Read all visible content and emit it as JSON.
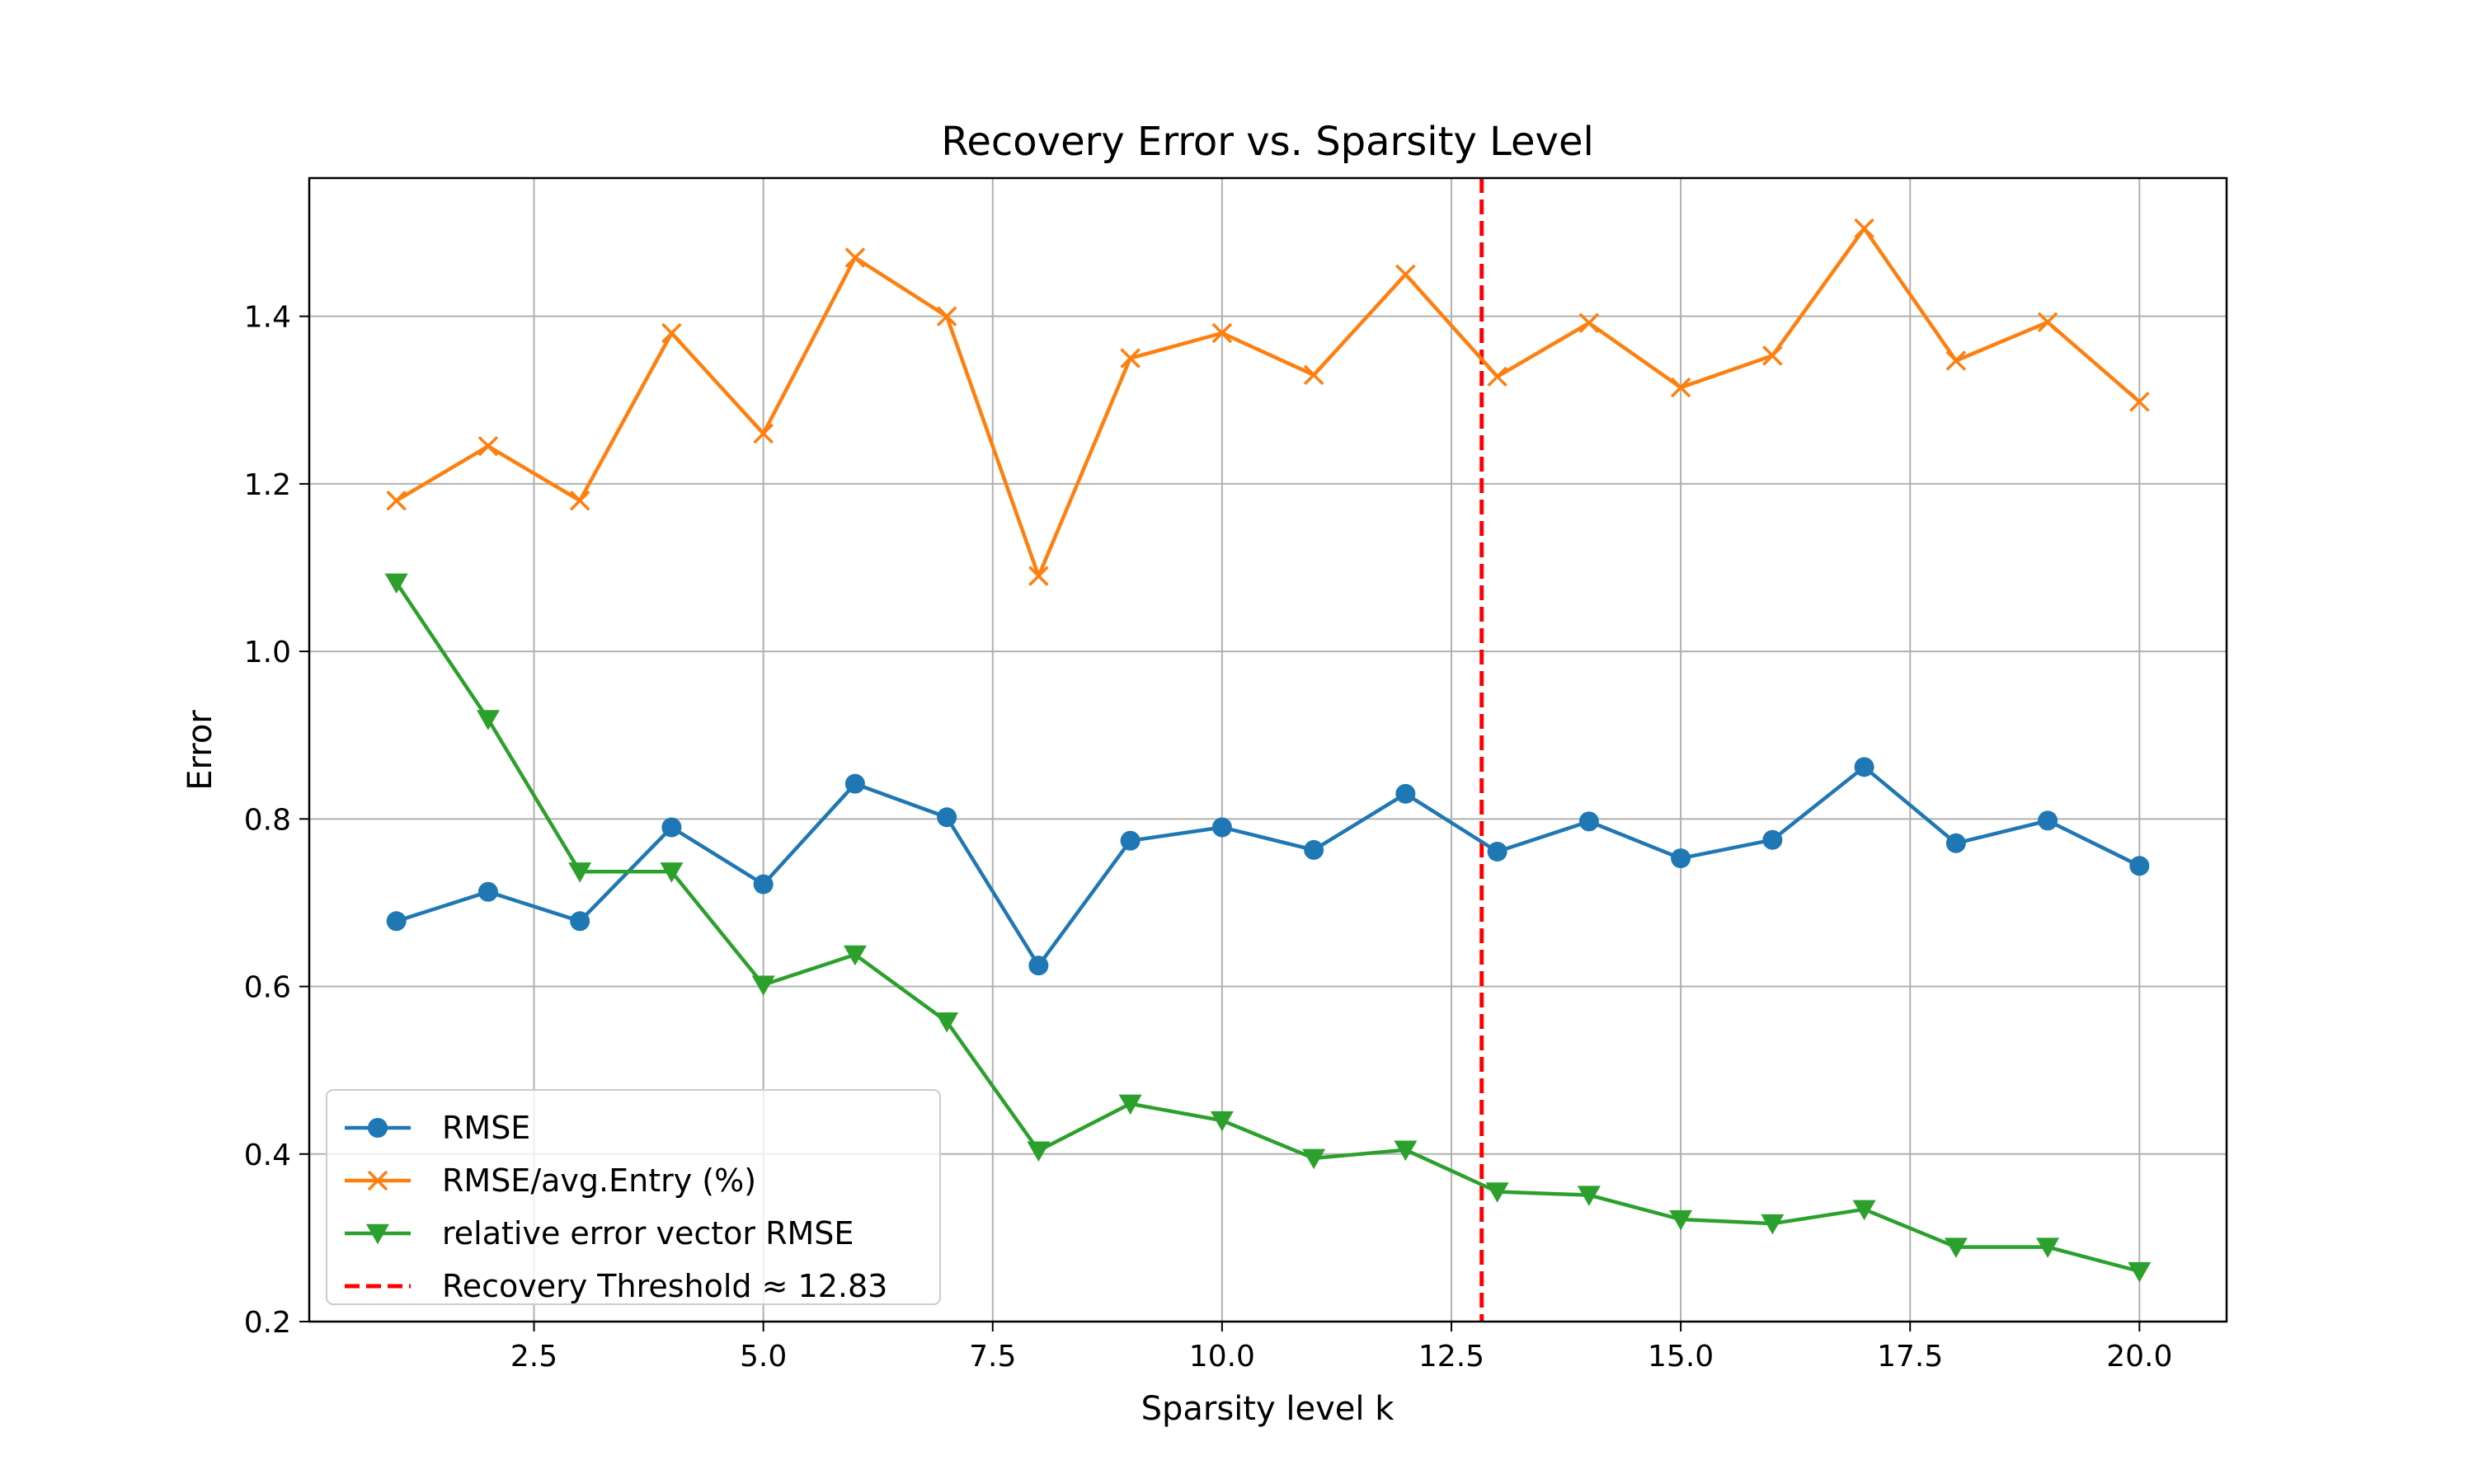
{
  "chart_data": {
    "type": "line",
    "title": "Recovery Error vs. Sparsity Level",
    "xlabel": "Sparsity level k",
    "ylabel": "Error",
    "xlim": [
      0.05,
      20.95
    ],
    "ylim": [
      0.2,
      1.565
    ],
    "grid": true,
    "legend_position": "lower-left",
    "x_ticks": [
      "2.5",
      "5.0",
      "7.5",
      "10.0",
      "12.5",
      "15.0",
      "17.5",
      "20.0"
    ],
    "x_tick_values": [
      2.5,
      5.0,
      7.5,
      10.0,
      12.5,
      15.0,
      17.5,
      20.0
    ],
    "y_ticks": [
      "0.2",
      "0.4",
      "0.6",
      "0.8",
      "1.0",
      "1.2",
      "1.4"
    ],
    "y_tick_values": [
      0.2,
      0.4,
      0.6,
      0.8,
      1.0,
      1.2,
      1.4
    ],
    "x": [
      1,
      2,
      3,
      4,
      5,
      6,
      7,
      8,
      9,
      10,
      11,
      12,
      13,
      14,
      15,
      16,
      17,
      18,
      19,
      20
    ],
    "series": [
      {
        "name": "RMSE",
        "color": "#1f77b4",
        "marker": "circle",
        "values": [
          0.678,
          0.713,
          0.678,
          0.79,
          0.722,
          0.842,
          0.802,
          0.625,
          0.774,
          0.79,
          0.763,
          0.83,
          0.761,
          0.797,
          0.753,
          0.775,
          0.862,
          0.771,
          0.798,
          0.744
        ]
      },
      {
        "name": "RMSE/avg.Entry (%)",
        "color": "#ff7f0e",
        "marker": "x",
        "values": [
          1.18,
          1.245,
          1.18,
          1.38,
          1.26,
          1.47,
          1.4,
          1.09,
          1.35,
          1.38,
          1.33,
          1.45,
          1.328,
          1.392,
          1.315,
          1.353,
          1.505,
          1.347,
          1.393,
          1.298
        ]
      },
      {
        "name": "relative error vector RMSE",
        "color": "#2ca02c",
        "marker": "triangle-down",
        "values": [
          1.082,
          0.919,
          0.737,
          0.737,
          0.602,
          0.638,
          0.558,
          0.404,
          0.46,
          0.44,
          0.395,
          0.405,
          0.355,
          0.351,
          0.322,
          0.317,
          0.334,
          0.289,
          0.289,
          0.26
        ]
      }
    ],
    "threshold": {
      "label": "Recovery Threshold ≈ 12.83",
      "x": 12.83,
      "color": "#ff0000",
      "style": "dashed"
    }
  }
}
